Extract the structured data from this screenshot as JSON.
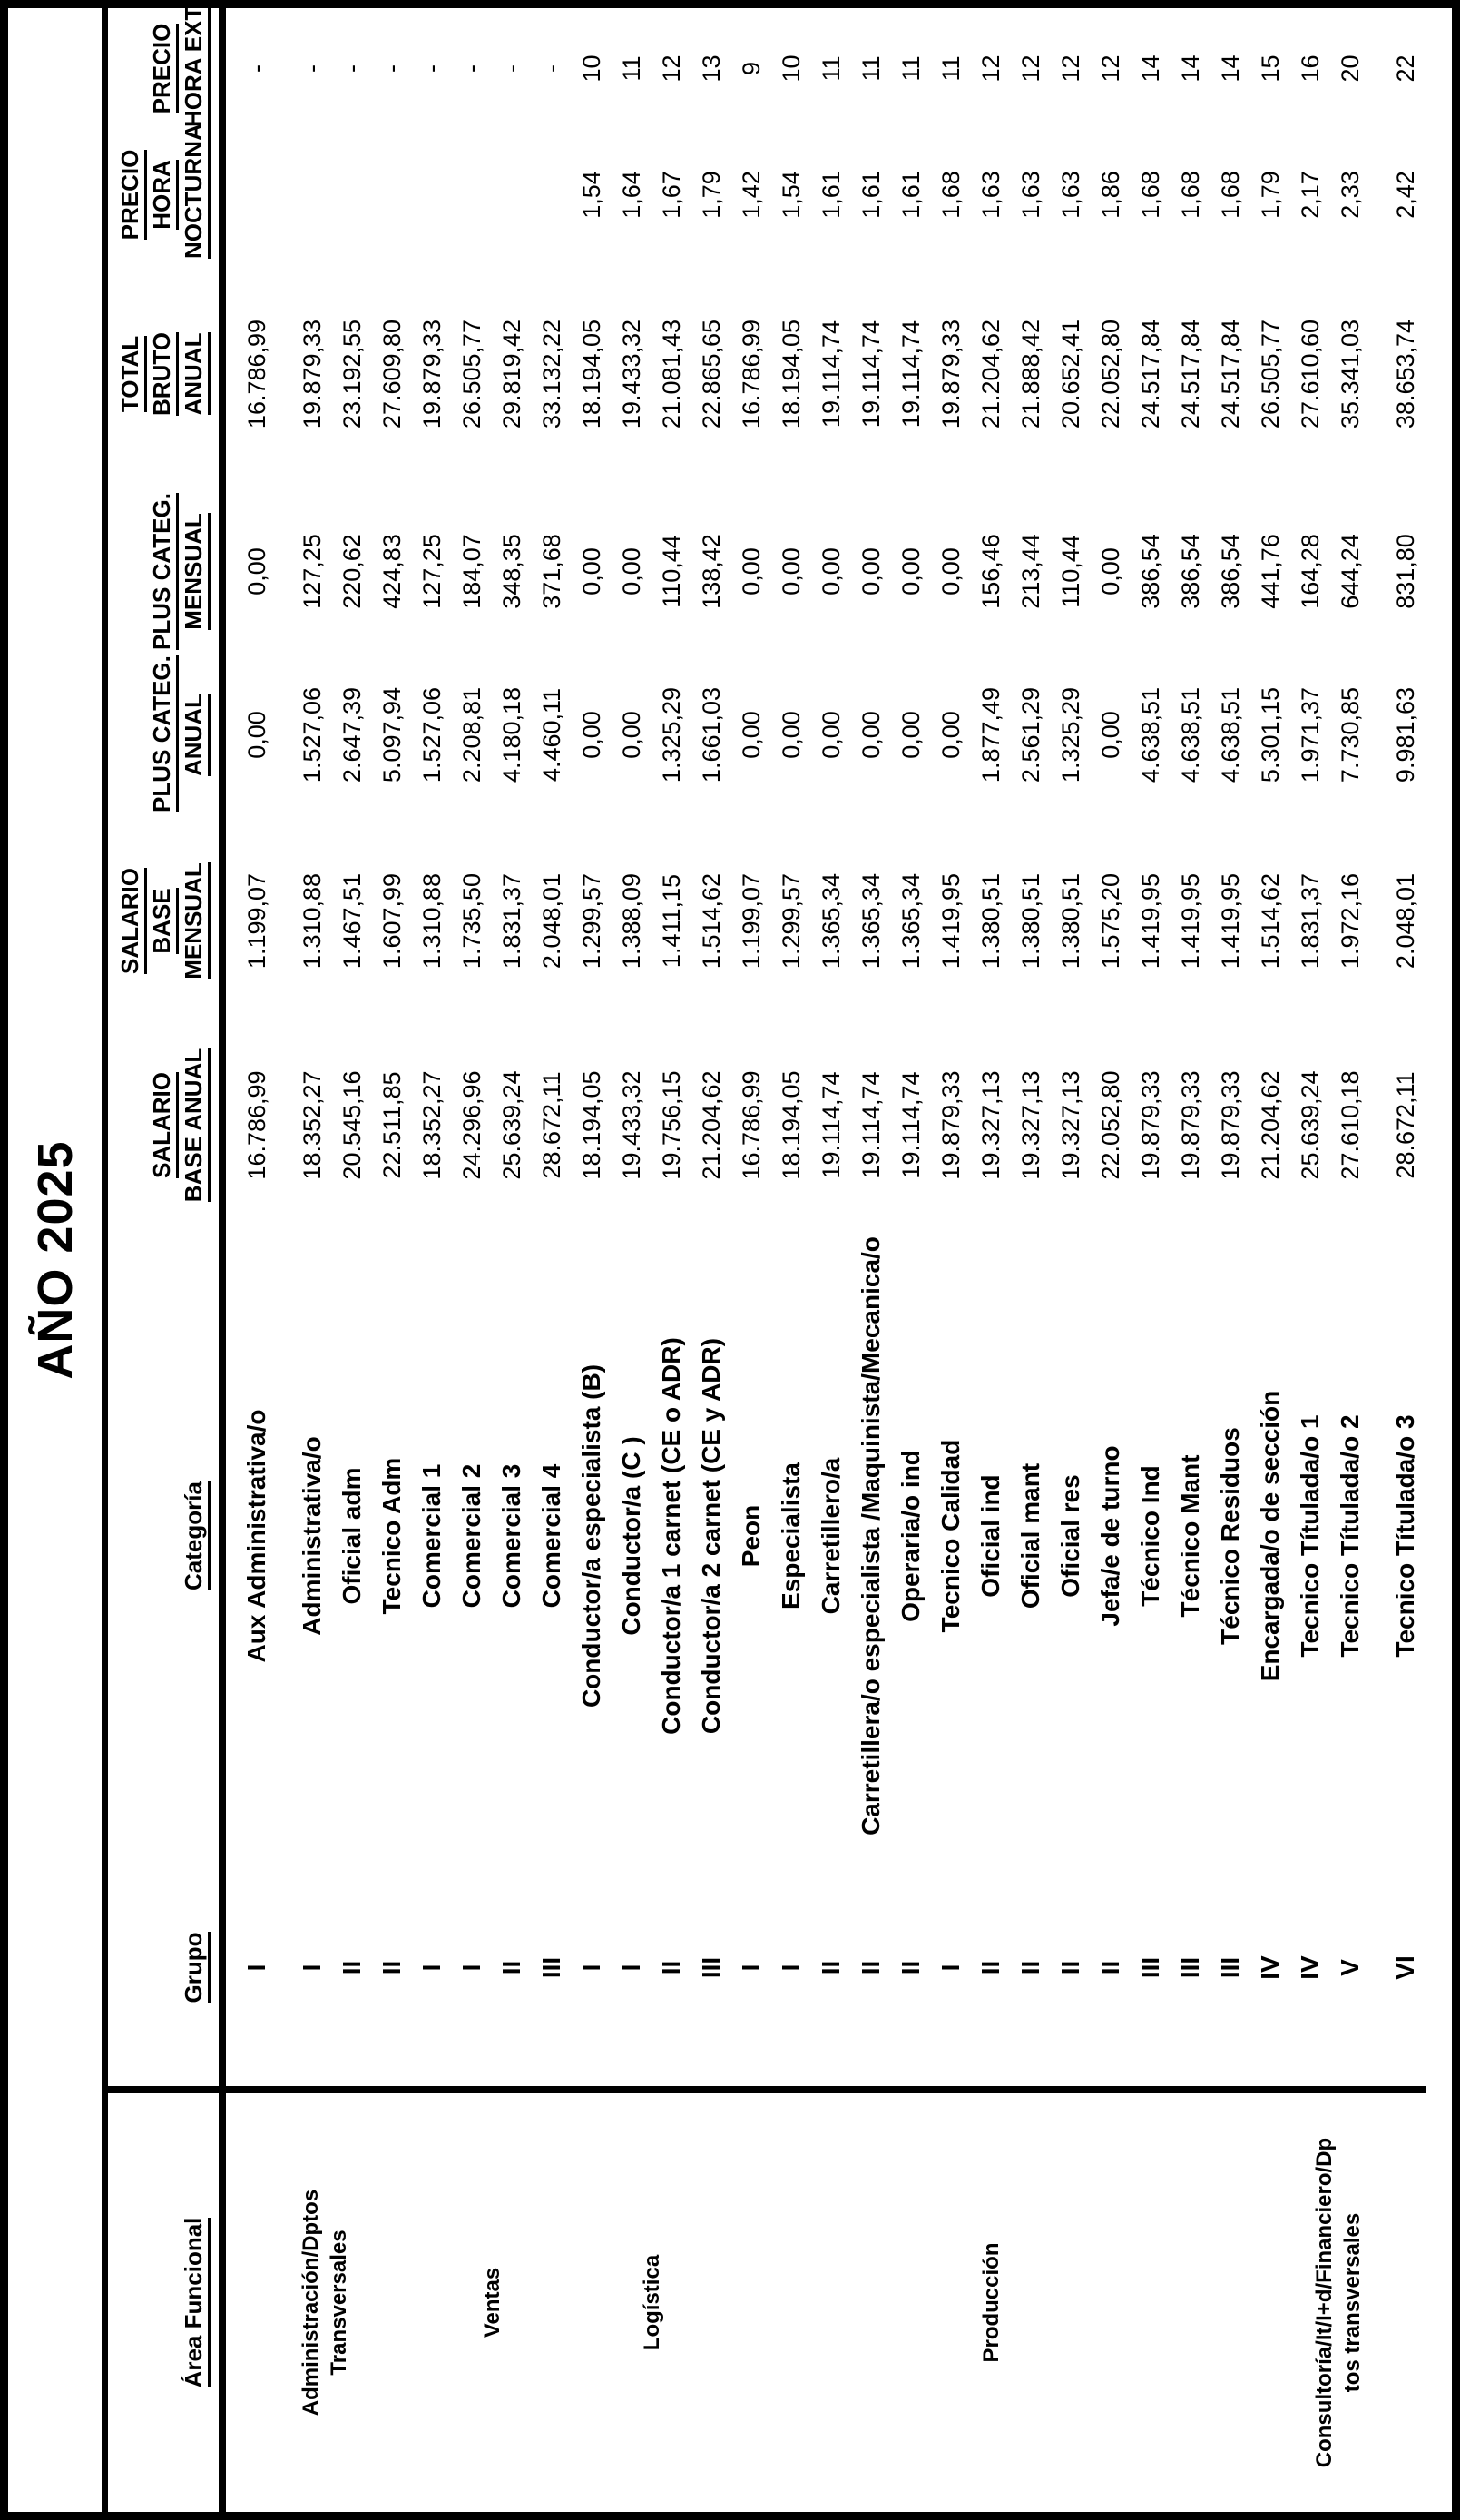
{
  "title": "AÑO 2025",
  "table": {
    "headers": {
      "area": [
        "Área Funcional"
      ],
      "grupo": [
        "Grupo"
      ],
      "categoria": [
        "Categoría"
      ],
      "salario_base_anual": [
        "SALARIO",
        "BASE ANUAL"
      ],
      "salario_base_mensual": [
        "SALARIO",
        "BASE",
        "MENSUAL"
      ],
      "plus_categ_anual": [
        "PLUS CATEG.",
        "ANUAL"
      ],
      "plus_categ_mensual": [
        "PLUS CATEG.",
        "MENSUAL"
      ],
      "total_bruto_anual": [
        "TOTAL",
        "BRUTO",
        "ANUAL"
      ],
      "precio_hora_nocturna": [
        "PRECIO",
        "HORA",
        "NOCTURNA"
      ],
      "precio_hora_extra": [
        "PRECIO",
        "HORA EXTRA"
      ]
    },
    "areas": [
      {
        "label": [
          "Administración/Dptos",
          "Transversales"
        ],
        "from_row": 1,
        "to_row": 4
      },
      {
        "label": [
          "Ventas"
        ],
        "from_row": 5,
        "to_row": 8
      },
      {
        "label": [
          "Logística"
        ],
        "from_row": 9,
        "to_row": 12
      },
      {
        "label": [
          "Producción"
        ],
        "from_row": 13,
        "to_row": 25
      },
      {
        "label": [
          "Consultoría/It/I+d/Financiero/Dp",
          "tos transversales"
        ],
        "from_row": 26,
        "to_row": 29
      }
    ],
    "gap_after_rows": [
      1,
      28
    ],
    "rows": [
      {
        "grupo": "I",
        "categoria": "Aux Administrativa/o",
        "salario_base_anual": "16.786,99",
        "salario_base_mensual": "1.199,07",
        "plus_categ_anual": "0,00",
        "plus_categ_mensual": "0,00",
        "total_bruto_anual": "16.786,99",
        "precio_hora_nocturna": "",
        "precio_hora_extra": "-"
      },
      {
        "grupo": "I",
        "categoria": "Administrativa/o",
        "salario_base_anual": "18.352,27",
        "salario_base_mensual": "1.310,88",
        "plus_categ_anual": "1.527,06",
        "plus_categ_mensual": "127,25",
        "total_bruto_anual": "19.879,33",
        "precio_hora_nocturna": "",
        "precio_hora_extra": "-"
      },
      {
        "grupo": "II",
        "categoria": "Oficial adm",
        "salario_base_anual": "20.545,16",
        "salario_base_mensual": "1.467,51",
        "plus_categ_anual": "2.647,39",
        "plus_categ_mensual": "220,62",
        "total_bruto_anual": "23.192,55",
        "precio_hora_nocturna": "",
        "precio_hora_extra": "-"
      },
      {
        "grupo": "II",
        "categoria": "Tecnico Adm",
        "salario_base_anual": "22.511,85",
        "salario_base_mensual": "1.607,99",
        "plus_categ_anual": "5.097,94",
        "plus_categ_mensual": "424,83",
        "total_bruto_anual": "27.609,80",
        "precio_hora_nocturna": "",
        "precio_hora_extra": "-"
      },
      {
        "grupo": "I",
        "categoria": "Comercial 1",
        "salario_base_anual": "18.352,27",
        "salario_base_mensual": "1.310,88",
        "plus_categ_anual": "1.527,06",
        "plus_categ_mensual": "127,25",
        "total_bruto_anual": "19.879,33",
        "precio_hora_nocturna": "",
        "precio_hora_extra": "-"
      },
      {
        "grupo": "I",
        "categoria": "Comercial 2",
        "salario_base_anual": "24.296,96",
        "salario_base_mensual": "1.735,50",
        "plus_categ_anual": "2.208,81",
        "plus_categ_mensual": "184,07",
        "total_bruto_anual": "26.505,77",
        "precio_hora_nocturna": "",
        "precio_hora_extra": "-"
      },
      {
        "grupo": "II",
        "categoria": "Comercial 3",
        "salario_base_anual": "25.639,24",
        "salario_base_mensual": "1.831,37",
        "plus_categ_anual": "4.180,18",
        "plus_categ_mensual": "348,35",
        "total_bruto_anual": "29.819,42",
        "precio_hora_nocturna": "",
        "precio_hora_extra": "-"
      },
      {
        "grupo": "III",
        "categoria": "Comercial 4",
        "salario_base_anual": "28.672,11",
        "salario_base_mensual": "2.048,01",
        "plus_categ_anual": "4.460,11",
        "plus_categ_mensual": "371,68",
        "total_bruto_anual": "33.132,22",
        "precio_hora_nocturna": "",
        "precio_hora_extra": "-"
      },
      {
        "grupo": "I",
        "categoria": "Conductor/a especialista (B)",
        "salario_base_anual": "18.194,05",
        "salario_base_mensual": "1.299,57",
        "plus_categ_anual": "0,00",
        "plus_categ_mensual": "0,00",
        "total_bruto_anual": "18.194,05",
        "precio_hora_nocturna": "1,54",
        "precio_hora_extra": "10"
      },
      {
        "grupo": "I",
        "categoria": "Conductor/a (C )",
        "salario_base_anual": "19.433,32",
        "salario_base_mensual": "1.388,09",
        "plus_categ_anual": "0,00",
        "plus_categ_mensual": "0,00",
        "total_bruto_anual": "19.433,32",
        "precio_hora_nocturna": "1,64",
        "precio_hora_extra": "11"
      },
      {
        "grupo": "II",
        "categoria": "Conductor/a 1 carnet (CE o ADR)",
        "salario_base_anual": "19.756,15",
        "salario_base_mensual": "1.411,15",
        "plus_categ_anual": "1.325,29",
        "plus_categ_mensual": "110,44",
        "total_bruto_anual": "21.081,43",
        "precio_hora_nocturna": "1,67",
        "precio_hora_extra": "12"
      },
      {
        "grupo": "III",
        "categoria": "Conductor/a 2 carnet (CE y ADR)",
        "salario_base_anual": "21.204,62",
        "salario_base_mensual": "1.514,62",
        "plus_categ_anual": "1.661,03",
        "plus_categ_mensual": "138,42",
        "total_bruto_anual": "22.865,65",
        "precio_hora_nocturna": "1,79",
        "precio_hora_extra": "13"
      },
      {
        "grupo": "I",
        "categoria": "Peon",
        "salario_base_anual": "16.786,99",
        "salario_base_mensual": "1.199,07",
        "plus_categ_anual": "0,00",
        "plus_categ_mensual": "0,00",
        "total_bruto_anual": "16.786,99",
        "precio_hora_nocturna": "1,42",
        "precio_hora_extra": "9"
      },
      {
        "grupo": "I",
        "categoria": "Especialista",
        "salario_base_anual": "18.194,05",
        "salario_base_mensual": "1.299,57",
        "plus_categ_anual": "0,00",
        "plus_categ_mensual": "0,00",
        "total_bruto_anual": "18.194,05",
        "precio_hora_nocturna": "1,54",
        "precio_hora_extra": "10"
      },
      {
        "grupo": "II",
        "categoria": "Carretillero/a",
        "salario_base_anual": "19.114,74",
        "salario_base_mensual": "1.365,34",
        "plus_categ_anual": "0,00",
        "plus_categ_mensual": "0,00",
        "total_bruto_anual": "19.114,74",
        "precio_hora_nocturna": "1,61",
        "precio_hora_extra": "11"
      },
      {
        "grupo": "II",
        "categoria": "Carretillera/o especialista /Maquinista/Mecanica/o",
        "salario_base_anual": "19.114,74",
        "salario_base_mensual": "1.365,34",
        "plus_categ_anual": "0,00",
        "plus_categ_mensual": "0,00",
        "total_bruto_anual": "19.114,74",
        "precio_hora_nocturna": "1,61",
        "precio_hora_extra": "11"
      },
      {
        "grupo": "II",
        "categoria": "Operaria/o ind",
        "salario_base_anual": "19.114,74",
        "salario_base_mensual": "1.365,34",
        "plus_categ_anual": "0,00",
        "plus_categ_mensual": "0,00",
        "total_bruto_anual": "19.114,74",
        "precio_hora_nocturna": "1,61",
        "precio_hora_extra": "11"
      },
      {
        "grupo": "I",
        "categoria": "Tecnico Calidad",
        "salario_base_anual": "19.879,33",
        "salario_base_mensual": "1.419,95",
        "plus_categ_anual": "0,00",
        "plus_categ_mensual": "0,00",
        "total_bruto_anual": "19.879,33",
        "precio_hora_nocturna": "1,68",
        "precio_hora_extra": "11"
      },
      {
        "grupo": "II",
        "categoria": "Oficial ind",
        "salario_base_anual": "19.327,13",
        "salario_base_mensual": "1.380,51",
        "plus_categ_anual": "1.877,49",
        "plus_categ_mensual": "156,46",
        "total_bruto_anual": "21.204,62",
        "precio_hora_nocturna": "1,63",
        "precio_hora_extra": "12"
      },
      {
        "grupo": "II",
        "categoria": "Oficial mant",
        "salario_base_anual": "19.327,13",
        "salario_base_mensual": "1.380,51",
        "plus_categ_anual": "2.561,29",
        "plus_categ_mensual": "213,44",
        "total_bruto_anual": "21.888,42",
        "precio_hora_nocturna": "1,63",
        "precio_hora_extra": "12"
      },
      {
        "grupo": "II",
        "categoria": "Oficial res",
        "salario_base_anual": "19.327,13",
        "salario_base_mensual": "1.380,51",
        "plus_categ_anual": "1.325,29",
        "plus_categ_mensual": "110,44",
        "total_bruto_anual": "20.652,41",
        "precio_hora_nocturna": "1,63",
        "precio_hora_extra": "12"
      },
      {
        "grupo": "II",
        "categoria": "Jefa/e de turno",
        "salario_base_anual": "22.052,80",
        "salario_base_mensual": "1.575,20",
        "plus_categ_anual": "0,00",
        "plus_categ_mensual": "0,00",
        "total_bruto_anual": "22.052,80",
        "precio_hora_nocturna": "1,86",
        "precio_hora_extra": "12"
      },
      {
        "grupo": "III",
        "categoria": "Técnico Ind",
        "salario_base_anual": "19.879,33",
        "salario_base_mensual": "1.419,95",
        "plus_categ_anual": "4.638,51",
        "plus_categ_mensual": "386,54",
        "total_bruto_anual": "24.517,84",
        "precio_hora_nocturna": "1,68",
        "precio_hora_extra": "14"
      },
      {
        "grupo": "III",
        "categoria": "Técnico Mant",
        "salario_base_anual": "19.879,33",
        "salario_base_mensual": "1.419,95",
        "plus_categ_anual": "4.638,51",
        "plus_categ_mensual": "386,54",
        "total_bruto_anual": "24.517,84",
        "precio_hora_nocturna": "1,68",
        "precio_hora_extra": "14"
      },
      {
        "grupo": "III",
        "categoria": "Técnico Residuos",
        "salario_base_anual": "19.879,33",
        "salario_base_mensual": "1.419,95",
        "plus_categ_anual": "4.638,51",
        "plus_categ_mensual": "386,54",
        "total_bruto_anual": "24.517,84",
        "precio_hora_nocturna": "1,68",
        "precio_hora_extra": "14"
      },
      {
        "grupo": "IV",
        "categoria": "Encargada/o de sección",
        "salario_base_anual": "21.204,62",
        "salario_base_mensual": "1.514,62",
        "plus_categ_anual": "5.301,15",
        "plus_categ_mensual": "441,76",
        "total_bruto_anual": "26.505,77",
        "precio_hora_nocturna": "1,79",
        "precio_hora_extra": "15"
      },
      {
        "grupo": "IV",
        "categoria": "Tecnico Títulada/o 1",
        "salario_base_anual": "25.639,24",
        "salario_base_mensual": "1.831,37",
        "plus_categ_anual": "1.971,37",
        "plus_categ_mensual": "164,28",
        "total_bruto_anual": "27.610,60",
        "precio_hora_nocturna": "2,17",
        "precio_hora_extra": "16"
      },
      {
        "grupo": "V",
        "categoria": "Tecnico Títulada/o 2",
        "salario_base_anual": "27.610,18",
        "salario_base_mensual": "1.972,16",
        "plus_categ_anual": "7.730,85",
        "plus_categ_mensual": "644,24",
        "total_bruto_anual": "35.341,03",
        "precio_hora_nocturna": "2,33",
        "precio_hora_extra": "20"
      },
      {
        "grupo": "VI",
        "categoria": "Tecnico Títulada/o 3",
        "salario_base_anual": "28.672,11",
        "salario_base_mensual": "2.048,01",
        "plus_categ_anual": "9.981,63",
        "plus_categ_mensual": "831,80",
        "total_bruto_anual": "38.653,74",
        "precio_hora_nocturna": "2,42",
        "precio_hora_extra": "22"
      }
    ]
  }
}
